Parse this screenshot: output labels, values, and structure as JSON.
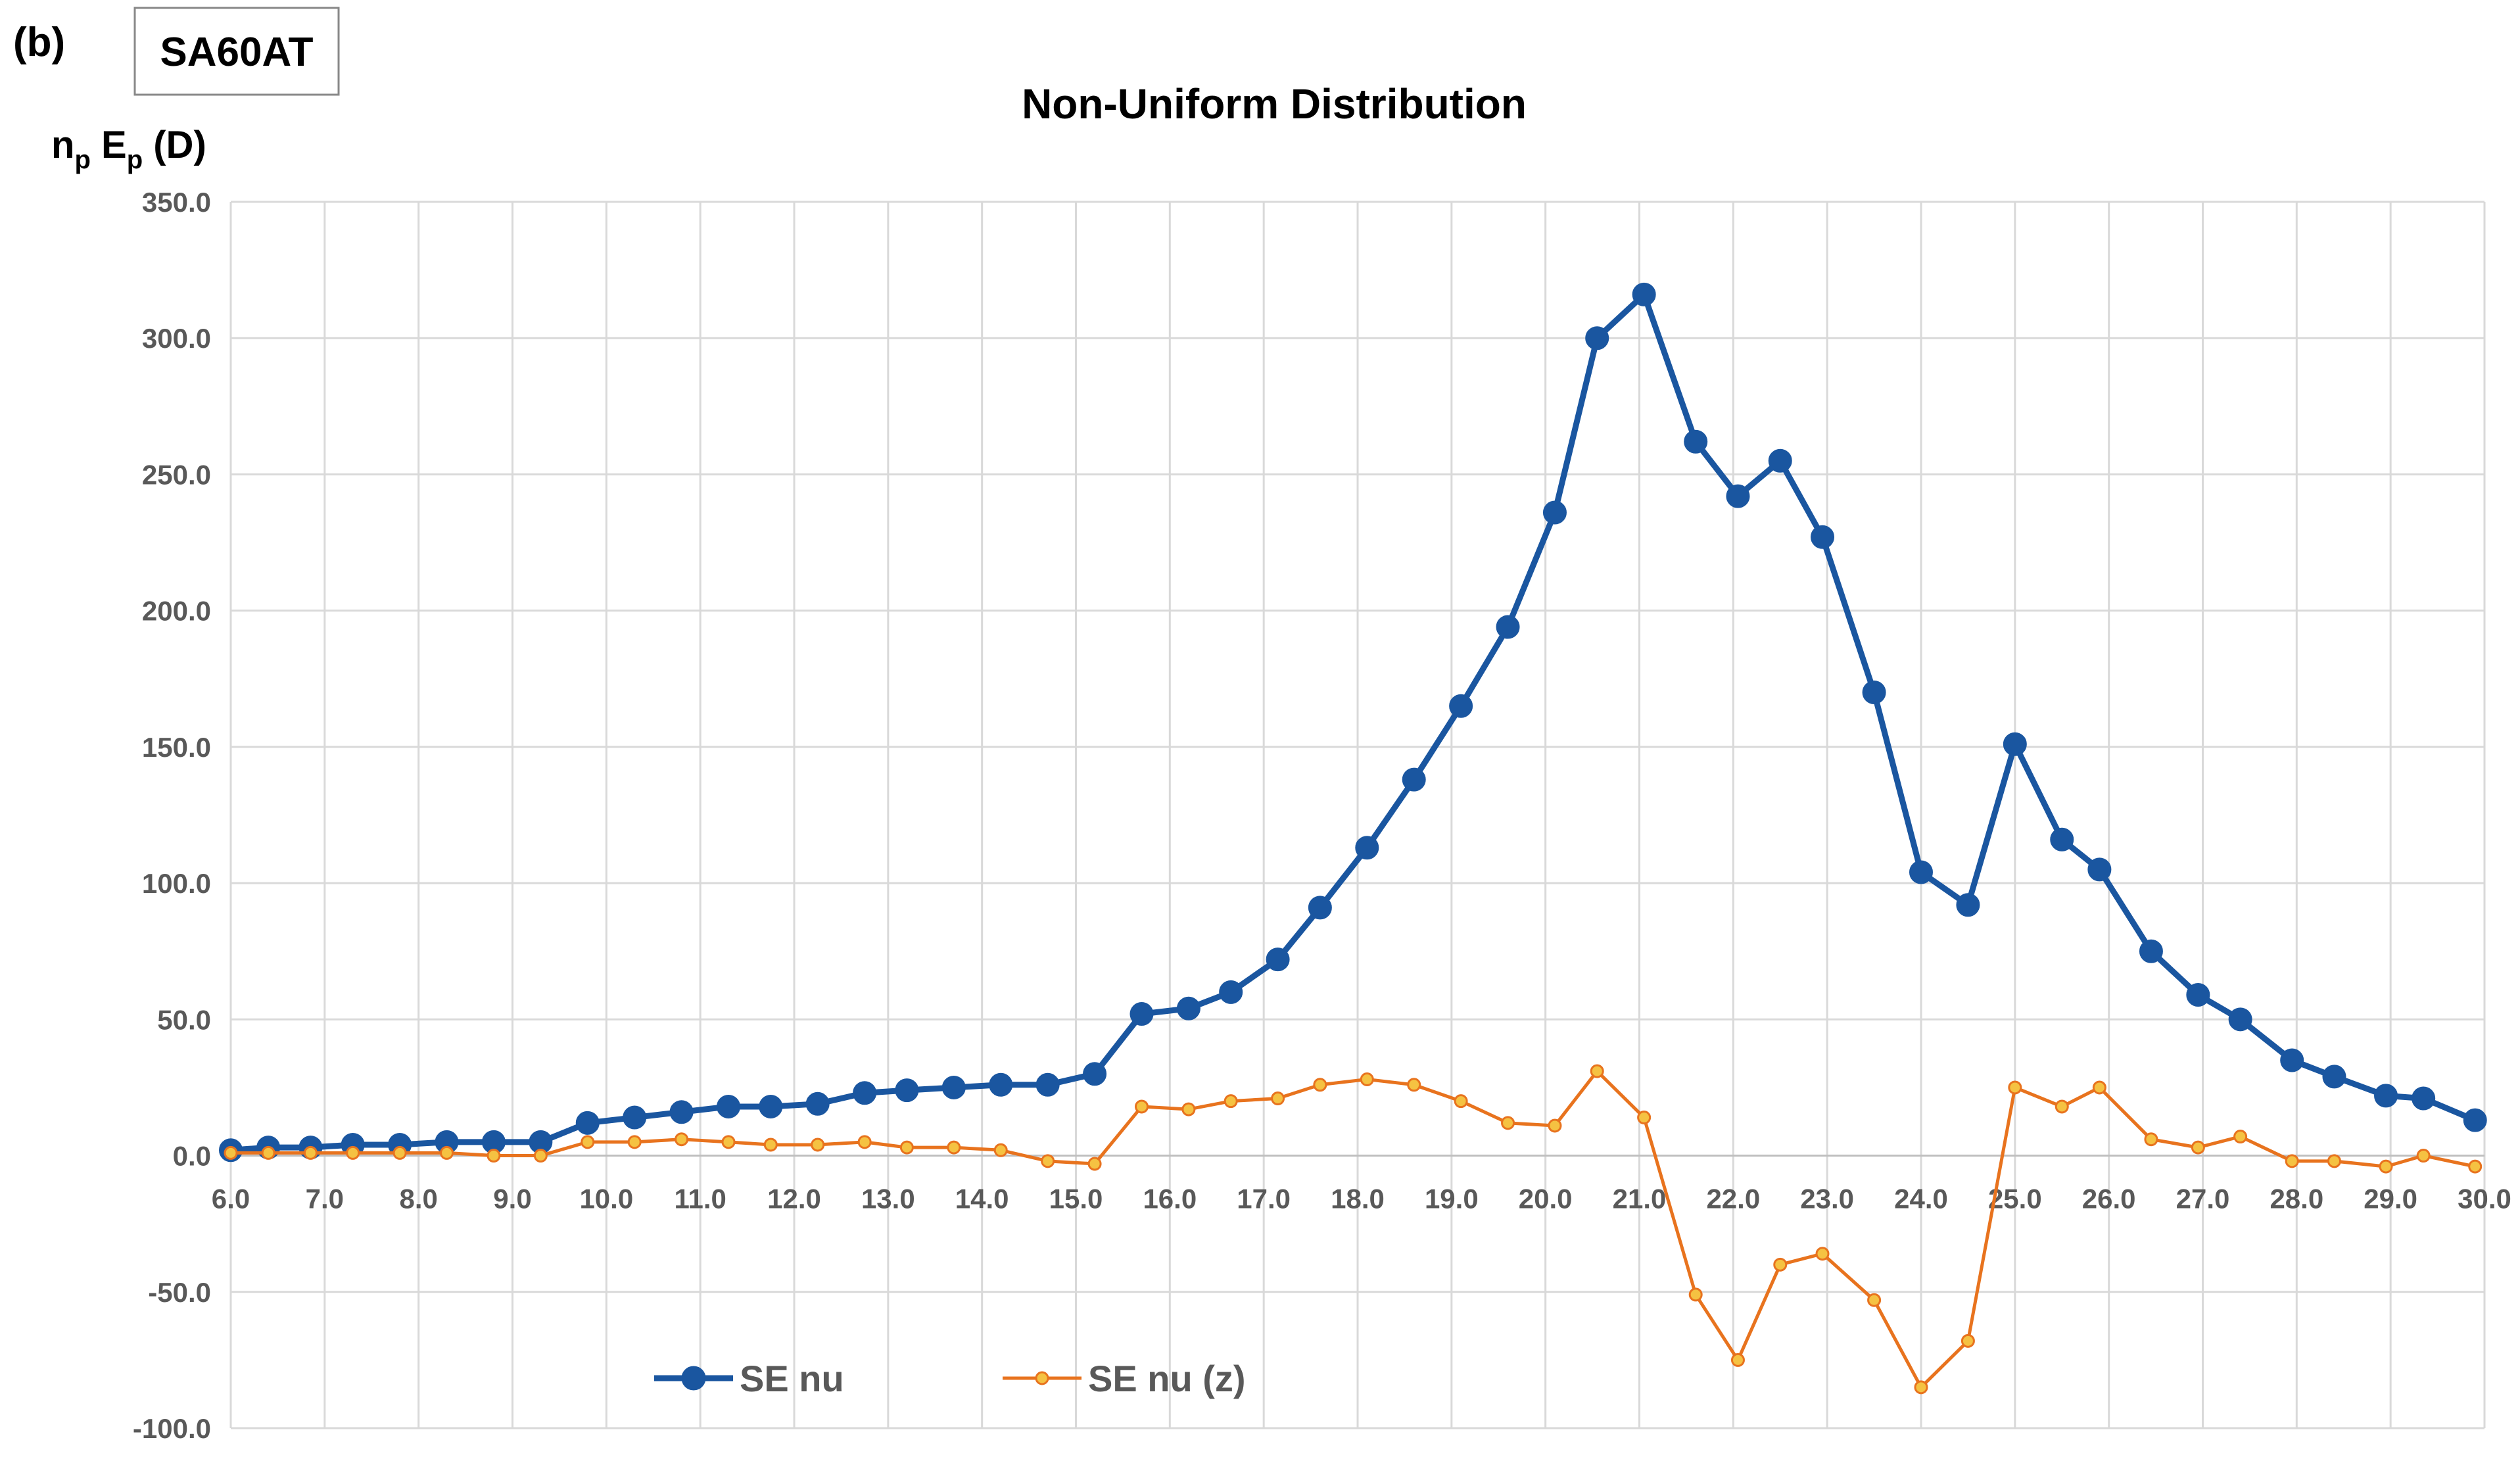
{
  "panel_label": "(b)",
  "sample_label": "SA60AT",
  "chart_data": {
    "type": "line",
    "title": "Non-Uniform Distribution",
    "y_label_parts": [
      "n",
      "p",
      " E",
      "p",
      " (D)"
    ],
    "x": [
      6.0,
      6.4,
      6.85,
      7.3,
      7.8,
      8.3,
      8.8,
      9.3,
      9.8,
      10.3,
      10.8,
      11.3,
      11.75,
      12.25,
      12.75,
      13.2,
      13.7,
      14.2,
      14.7,
      15.2,
      15.7,
      16.2,
      16.65,
      17.15,
      17.6,
      18.1,
      18.6,
      19.1,
      19.6,
      20.1,
      20.55,
      21.05,
      21.6,
      22.05,
      22.5,
      22.95,
      23.5,
      24.0,
      24.5,
      25.0,
      25.5,
      25.9,
      26.45,
      26.95,
      27.4,
      27.95,
      28.4,
      28.95,
      29.35,
      29.9
    ],
    "series": [
      {
        "name": "SE nu",
        "color": "#1a56a0",
        "marker_fill": "#1a56a0",
        "values": [
          2,
          3,
          3,
          4,
          4,
          5,
          5,
          5,
          12,
          14,
          16,
          18,
          18,
          19,
          23,
          24,
          25,
          26,
          26,
          30,
          52,
          54,
          60,
          72,
          91,
          113,
          138,
          165,
          194,
          236,
          300,
          316,
          262,
          242,
          255,
          227,
          170,
          104,
          92,
          151,
          116,
          105,
          75,
          59,
          50,
          35,
          29,
          22,
          21,
          13
        ]
      },
      {
        "name": "SE nu (z)",
        "color": "#e8731e",
        "marker_fill": "#f5c242",
        "values": [
          1,
          1,
          1,
          1,
          1,
          1,
          0,
          0,
          5,
          5,
          6,
          5,
          4,
          4,
          5,
          3,
          3,
          2,
          -2,
          -3,
          18,
          17,
          20,
          21,
          26,
          28,
          26,
          20,
          12,
          11,
          31,
          14,
          -51,
          -75,
          -40,
          -36,
          -53,
          -85,
          -68,
          25,
          18,
          25,
          6,
          3,
          7,
          -2,
          -2,
          -4,
          0,
          -4
        ]
      }
    ],
    "xlim": [
      6,
      30
    ],
    "xticks": [
      {
        "value": 6,
        "label": "6.0"
      },
      {
        "value": 7,
        "label": "7.0"
      },
      {
        "value": 8,
        "label": "8.0"
      },
      {
        "value": 9,
        "label": "9.0"
      },
      {
        "value": 10,
        "label": "10.0"
      },
      {
        "value": 11,
        "label": "11.0"
      },
      {
        "value": 12,
        "label": "12.0"
      },
      {
        "value": 13,
        "label": "13.0"
      },
      {
        "value": 14,
        "label": "14.0"
      },
      {
        "value": 15,
        "label": "15.0"
      },
      {
        "value": 16,
        "label": "16.0"
      },
      {
        "value": 17,
        "label": "17.0"
      },
      {
        "value": 18,
        "label": "18.0"
      },
      {
        "value": 19,
        "label": "19.0"
      },
      {
        "value": 20,
        "label": "20.0"
      },
      {
        "value": 21,
        "label": "21.0"
      },
      {
        "value": 22,
        "label": "22.0"
      },
      {
        "value": 23,
        "label": "23.0"
      },
      {
        "value": 24,
        "label": "24.0"
      },
      {
        "value": 25,
        "label": "25.0"
      },
      {
        "value": 26,
        "label": "26.0"
      },
      {
        "value": 27,
        "label": "27.0"
      },
      {
        "value": 28,
        "label": "28.0"
      },
      {
        "value": 29,
        "label": "29.0"
      },
      {
        "value": 30,
        "label": "30.0"
      }
    ],
    "ylim": [
      -100,
      350
    ],
    "yticks": [
      {
        "value": -100,
        "label": "-100.0"
      },
      {
        "value": -50,
        "label": "-50.0"
      },
      {
        "value": 0,
        "label": "0.0"
      },
      {
        "value": 50,
        "label": "50.0"
      },
      {
        "value": 100,
        "label": "100.0"
      },
      {
        "value": 150,
        "label": "150.0"
      },
      {
        "value": 200,
        "label": "200.0"
      },
      {
        "value": 250,
        "label": "250.0"
      },
      {
        "value": 300,
        "label": "300.0"
      },
      {
        "value": 350,
        "label": "350.0"
      }
    ],
    "grid": true,
    "legend": "bottom-left"
  }
}
